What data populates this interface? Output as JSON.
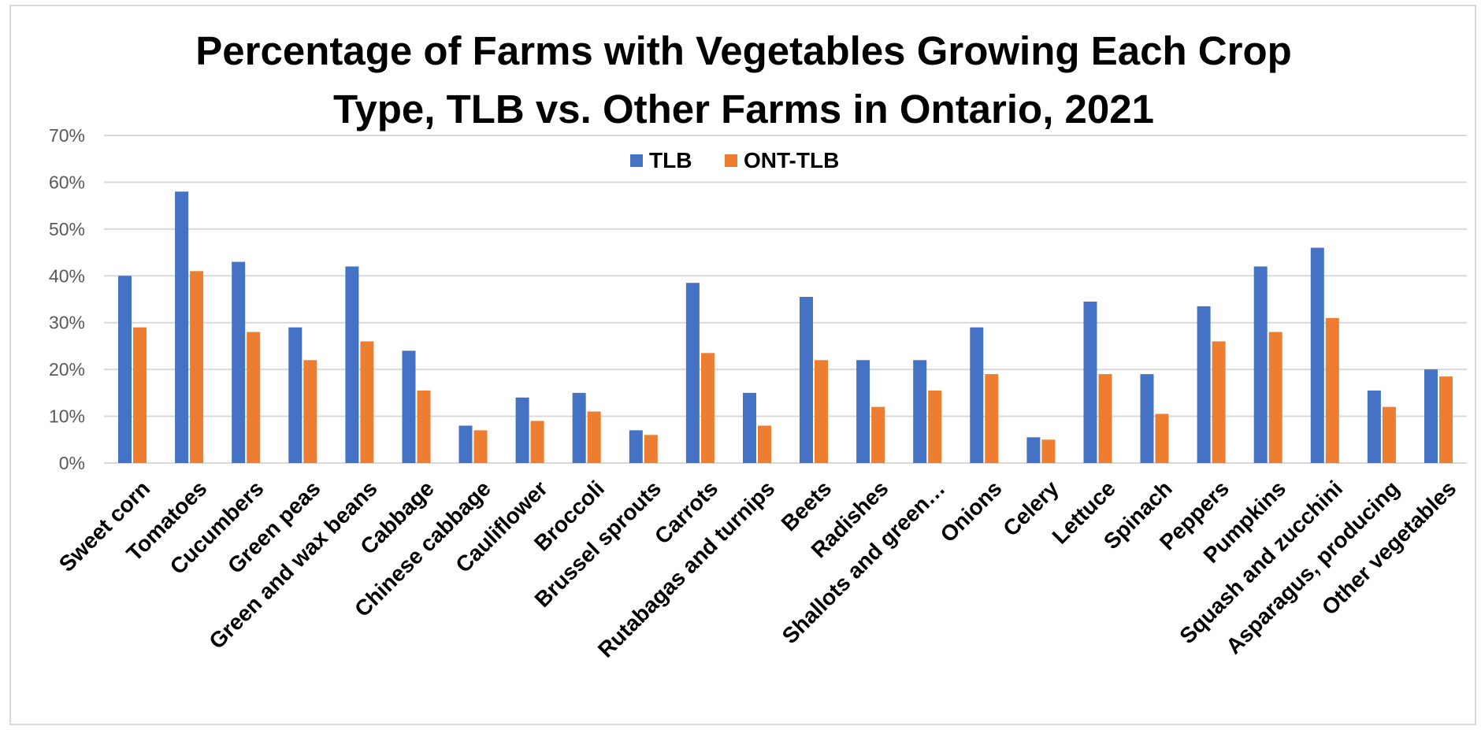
{
  "chart_data": {
    "type": "bar",
    "title": "Percentage of Farms with Vegetables Growing Each Crop Type, TLB vs. Other Farms in Ontario, 2021",
    "title_lines": [
      "Percentage of Farms with Vegetables Growing Each Crop",
      "Type, TLB vs. Other Farms in Ontario, 2021"
    ],
    "xlabel": "",
    "ylabel": "",
    "ylim": [
      0,
      0.7
    ],
    "yticks": [
      "0%",
      "10%",
      "20%",
      "30%",
      "40%",
      "50%",
      "60%",
      "70%"
    ],
    "grid": true,
    "legend_position": "top",
    "categories": [
      "Sweet corn",
      "Tomatoes",
      "Cucumbers",
      "Green peas",
      "Green and wax beans",
      "Cabbage",
      "Chinese cabbage",
      "Cauliflower",
      "Broccoli",
      "Brussel sprouts",
      "Carrots",
      "Rutabagas and turnips",
      "Beets",
      "Radishes",
      "Shallots and green…",
      "Onions",
      "Celery",
      "Lettuce",
      "Spinach",
      "Peppers",
      "Pumpkins",
      "Squash and zucchini",
      "Asparagus, producing",
      "Other vegetables"
    ],
    "series": [
      {
        "name": "TLB",
        "color": "#4472c4",
        "values": [
          0.4,
          0.58,
          0.43,
          0.29,
          0.42,
          0.24,
          0.08,
          0.14,
          0.15,
          0.07,
          0.385,
          0.15,
          0.355,
          0.22,
          0.22,
          0.29,
          0.055,
          0.345,
          0.19,
          0.335,
          0.42,
          0.46,
          0.155,
          0.2
        ]
      },
      {
        "name": "ONT-TLB",
        "color": "#ed7d31",
        "values": [
          0.29,
          0.41,
          0.28,
          0.22,
          0.26,
          0.155,
          0.07,
          0.09,
          0.11,
          0.06,
          0.235,
          0.08,
          0.22,
          0.12,
          0.155,
          0.19,
          0.05,
          0.19,
          0.105,
          0.26,
          0.28,
          0.31,
          0.12,
          0.185
        ]
      }
    ]
  }
}
